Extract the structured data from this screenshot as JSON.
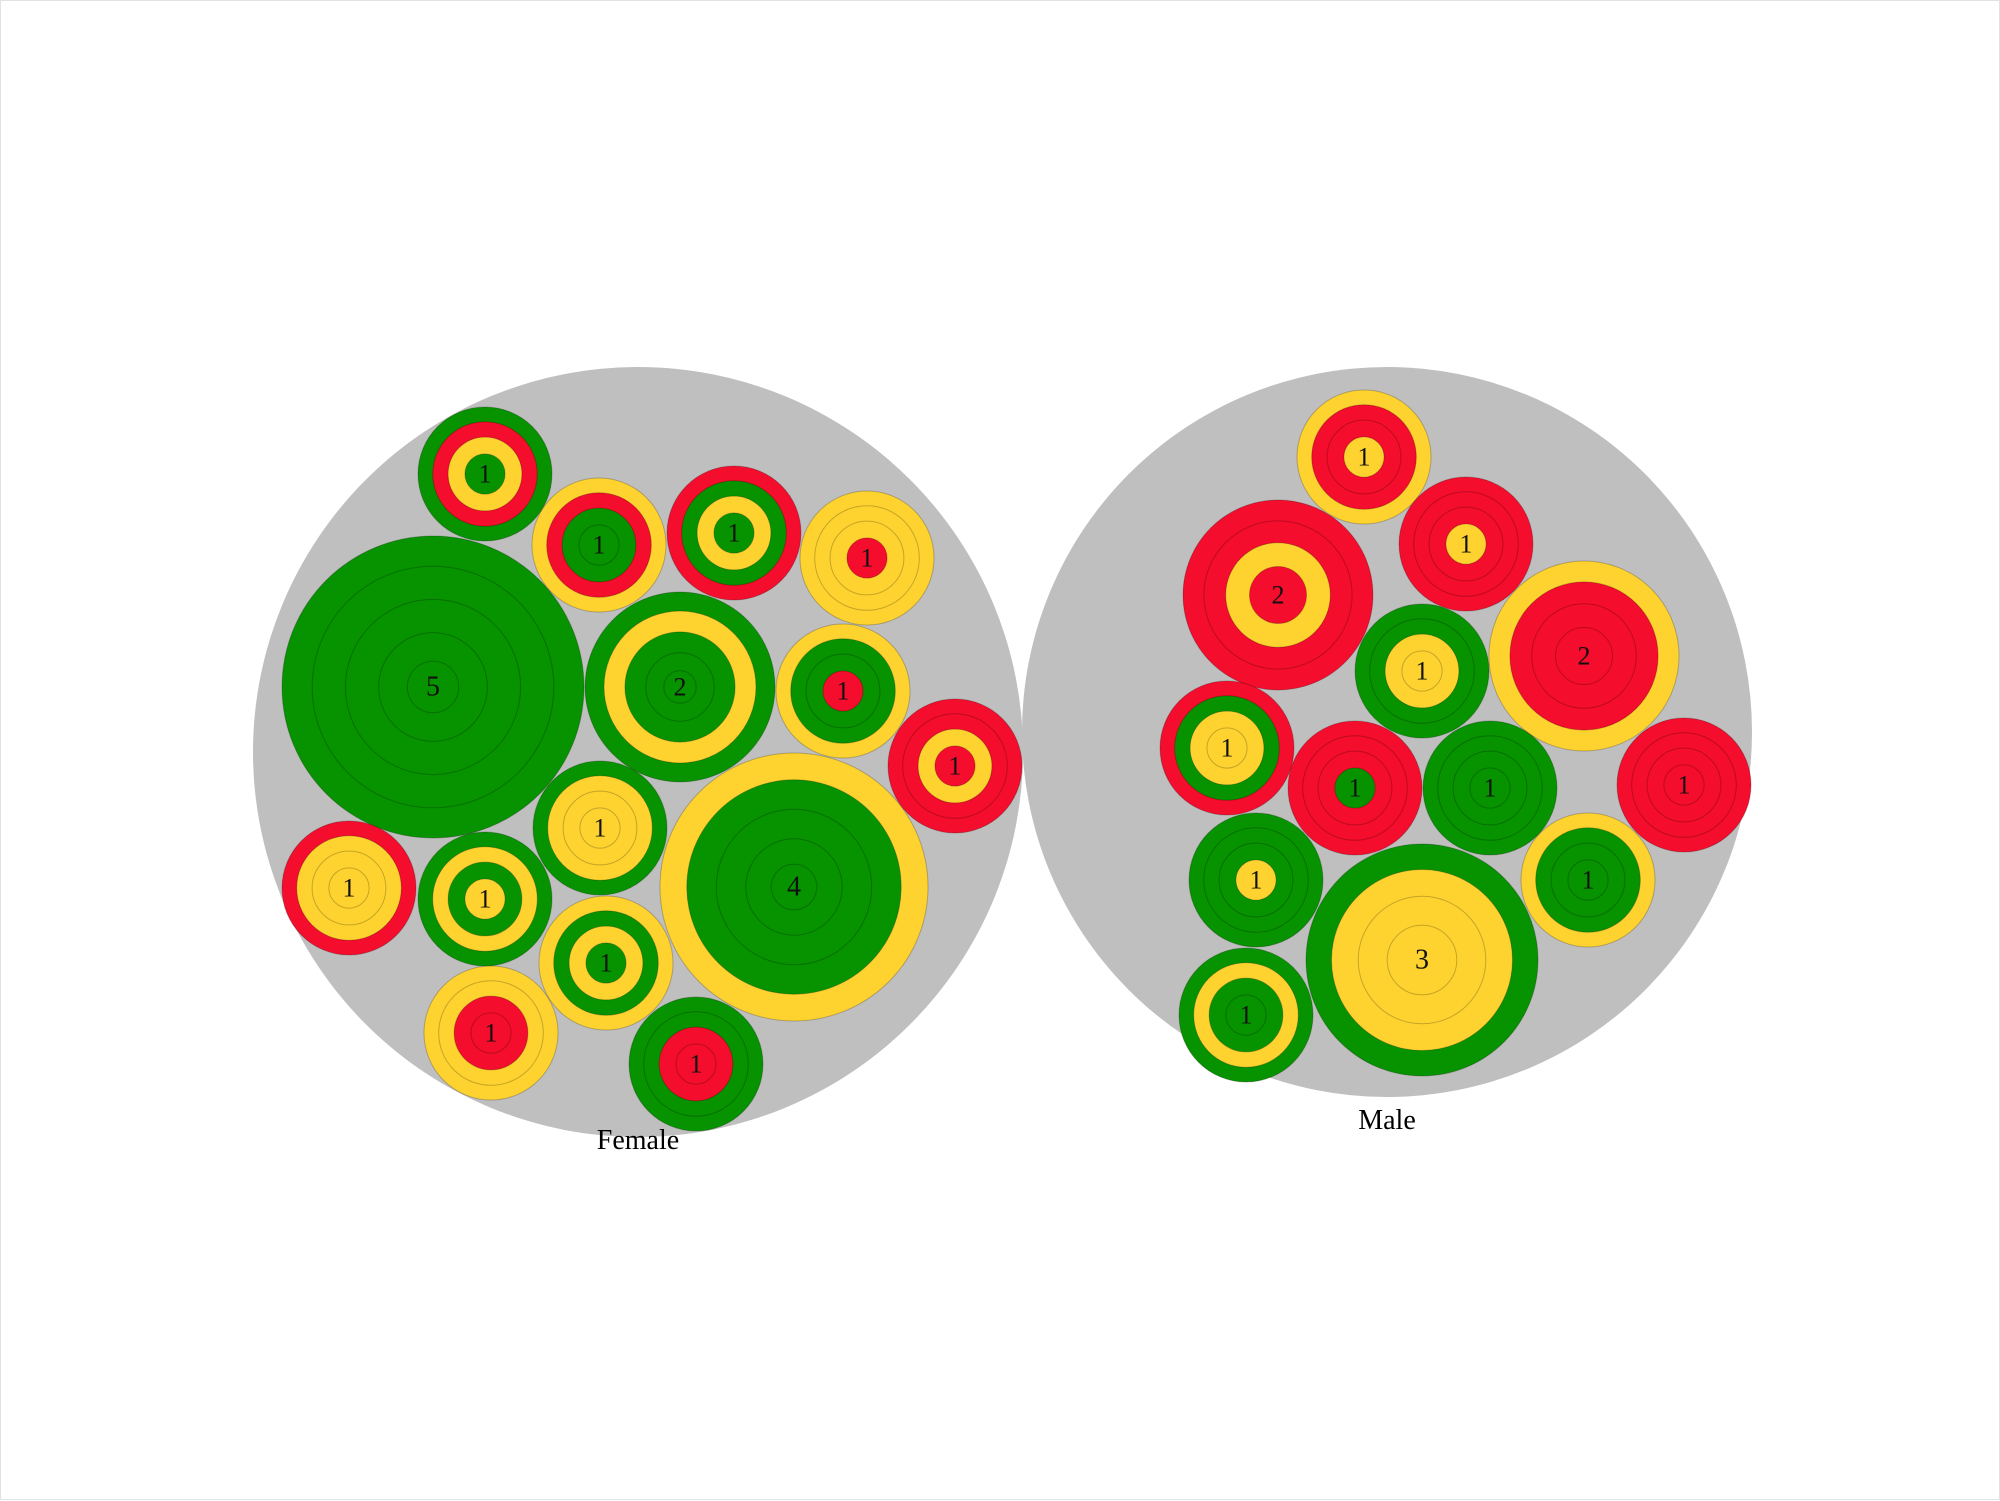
{
  "chart_data": {
    "type": "nested circle packing",
    "colors": {
      "background_bubble": "#bfbfbf",
      "green": "#079200",
      "yellow": "#fed330",
      "red": "#f40d2c"
    },
    "groups": [
      {
        "label": "Female",
        "items": [
          {
            "count": 5,
            "rings": [
              "green",
              "green",
              "green",
              "green",
              "green"
            ]
          },
          {
            "count": 4,
            "rings": [
              "yellow",
              "green",
              "green",
              "green",
              "green"
            ]
          },
          {
            "count": 2,
            "rings": [
              "green",
              "yellow",
              "green",
              "green",
              "green"
            ]
          },
          {
            "count": 1,
            "rings": [
              "green",
              "red",
              "yellow",
              "green"
            ]
          },
          {
            "count": 1,
            "rings": [
              "yellow",
              "red",
              "green",
              "green"
            ]
          },
          {
            "count": 1,
            "rings": [
              "red",
              "green",
              "yellow",
              "green"
            ]
          },
          {
            "count": 1,
            "rings": [
              "yellow",
              "yellow",
              "yellow",
              "red"
            ]
          },
          {
            "count": 1,
            "rings": [
              "yellow",
              "green",
              "green",
              "red"
            ]
          },
          {
            "count": 1,
            "rings": [
              "red",
              "red",
              "yellow",
              "red"
            ]
          },
          {
            "count": 1,
            "rings": [
              "green",
              "yellow",
              "yellow",
              "yellow"
            ]
          },
          {
            "count": 1,
            "rings": [
              "red",
              "yellow",
              "yellow",
              "yellow"
            ]
          },
          {
            "count": 1,
            "rings": [
              "green",
              "yellow",
              "green",
              "yellow"
            ]
          },
          {
            "count": 1,
            "rings": [
              "yellow",
              "green",
              "yellow",
              "green"
            ]
          },
          {
            "count": 1,
            "rings": [
              "yellow",
              "yellow",
              "red",
              "red"
            ]
          },
          {
            "count": 1,
            "rings": [
              "green",
              "green",
              "red",
              "red"
            ]
          }
        ]
      },
      {
        "label": "Male",
        "items": [
          {
            "count": 3,
            "rings": [
              "green",
              "yellow",
              "yellow",
              "yellow"
            ]
          },
          {
            "count": 2,
            "rings": [
              "red",
              "red",
              "yellow",
              "red"
            ]
          },
          {
            "count": 2,
            "rings": [
              "yellow",
              "red",
              "red",
              "red"
            ]
          },
          {
            "count": 1,
            "rings": [
              "yellow",
              "red",
              "red",
              "yellow"
            ]
          },
          {
            "count": 1,
            "rings": [
              "red",
              "red",
              "red",
              "yellow"
            ]
          },
          {
            "count": 1,
            "rings": [
              "green",
              "green",
              "yellow",
              "yellow"
            ]
          },
          {
            "count": 1,
            "rings": [
              "red",
              "green",
              "yellow",
              "yellow"
            ]
          },
          {
            "count": 1,
            "rings": [
              "red",
              "red",
              "red",
              "green"
            ]
          },
          {
            "count": 1,
            "rings": [
              "green",
              "green",
              "green",
              "green"
            ]
          },
          {
            "count": 1,
            "rings": [
              "red",
              "red",
              "red",
              "red"
            ]
          },
          {
            "count": 1,
            "rings": [
              "green",
              "green",
              "green",
              "yellow"
            ]
          },
          {
            "count": 1,
            "rings": [
              "yellow",
              "green",
              "green",
              "green"
            ]
          },
          {
            "count": 1,
            "rings": [
              "green",
              "yellow",
              "green",
              "green"
            ]
          }
        ]
      }
    ]
  }
}
